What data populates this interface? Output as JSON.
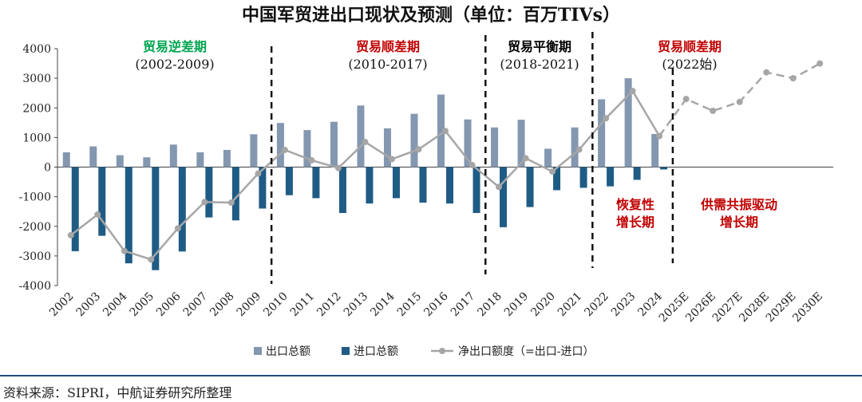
{
  "chart_data": {
    "type": "bar+line",
    "title": "中国军贸进出口现状及预测（单位：百万TIVs）",
    "ylim": [
      -4000,
      4000
    ],
    "yticks": [
      -4000,
      -3000,
      -2000,
      -1000,
      0,
      1000,
      2000,
      3000,
      4000
    ],
    "categories": [
      "2002",
      "2003",
      "2004",
      "2005",
      "2006",
      "2007",
      "2008",
      "2009",
      "2010",
      "2011",
      "2012",
      "2013",
      "2014",
      "2015",
      "2016",
      "2017",
      "2018",
      "2019",
      "2020",
      "2021",
      "2022",
      "2023",
      "2024",
      "2025E",
      "2026E",
      "2027E",
      "2028E",
      "2029E",
      "2030E"
    ],
    "series": [
      {
        "name": "出口总额",
        "type": "bar",
        "color": "#8497b0",
        "values": [
          500,
          700,
          400,
          330,
          760,
          500,
          580,
          1110,
          1490,
          1250,
          1530,
          2080,
          1310,
          1800,
          2450,
          1610,
          1340,
          1600,
          620,
          1340,
          2290,
          3000,
          1120,
          null,
          null,
          null,
          null,
          null,
          null
        ]
      },
      {
        "name": "进口总额",
        "type": "bar",
        "color": "#1f5c85",
        "values": [
          -2840,
          -2320,
          -3250,
          -3480,
          -2850,
          -1700,
          -1800,
          -1400,
          -950,
          -1050,
          -1550,
          -1230,
          -1050,
          -1200,
          -1230,
          -1550,
          -2030,
          -1350,
          -780,
          -700,
          -650,
          -430,
          -80,
          null,
          null,
          null,
          null,
          null,
          null
        ]
      },
      {
        "name": "净出口额度（=出口-进口）",
        "type": "line",
        "color": "#a6a6a6",
        "values": [
          -2300,
          -1600,
          -2830,
          -3120,
          -2070,
          -1180,
          -1200,
          -220,
          580,
          230,
          -30,
          850,
          270,
          600,
          1220,
          70,
          -670,
          300,
          -150,
          590,
          1650,
          2570,
          1050,
          2300,
          1900,
          2200,
          3200,
          3000,
          3500
        ]
      }
    ],
    "forecast_start_index": 23,
    "phases": [
      {
        "name": "贸易逆差期",
        "period": "(2002-2009)",
        "color": "#00a550"
      },
      {
        "name": "贸易顺差期",
        "period": "(2010-2017)",
        "color": "#c00000"
      },
      {
        "name": "贸易平衡期",
        "period": "(2018-2021)",
        "color": "#000000"
      },
      {
        "name": "贸易顺差期",
        "period": "(2022始)",
        "color": "#c00000"
      }
    ],
    "annotations": [
      {
        "lines": [
          "恢复性",
          "增长期"
        ],
        "color": "#c00000"
      },
      {
        "lines": [
          "供需共振驱动",
          "增长期"
        ],
        "color": "#c00000"
      }
    ],
    "legend": [
      "出口总额",
      "进口总额",
      "净出口额度（=出口-进口）"
    ]
  },
  "footer": {
    "source": "资料来源：SIPRI，中航证券研究所整理"
  }
}
